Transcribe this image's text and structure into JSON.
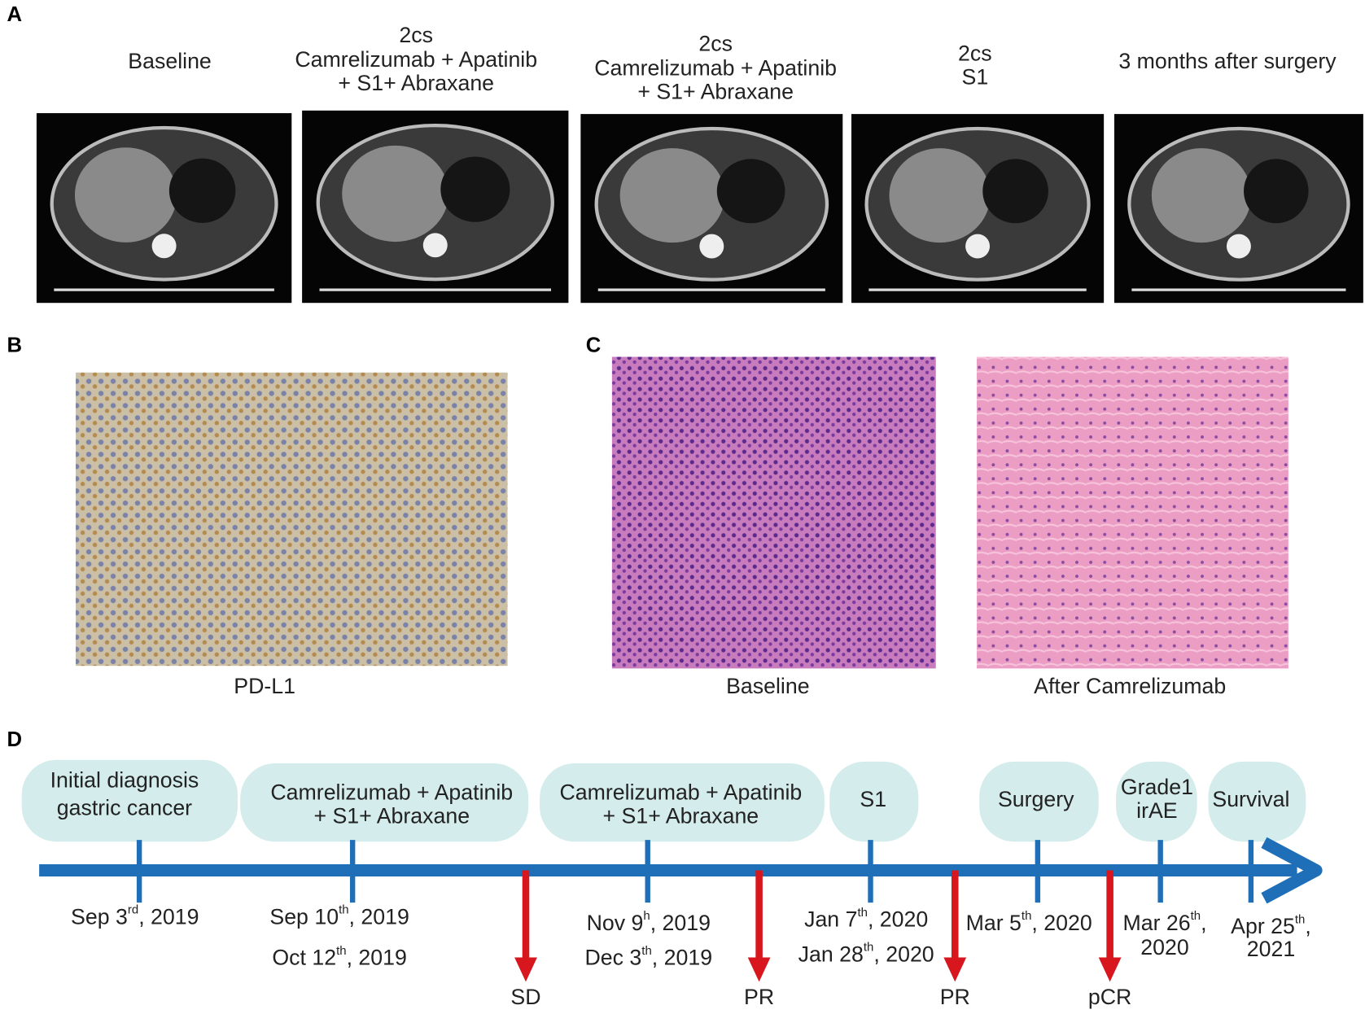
{
  "panels": {
    "a": "A",
    "b": "B",
    "c": "C",
    "d": "D"
  },
  "ct_scans": [
    {
      "label": [
        "Baseline"
      ]
    },
    {
      "label": [
        "2cs",
        "Camrelizumab + Apatinib",
        "+ S1+ Abraxane"
      ]
    },
    {
      "label": [
        "2cs",
        "Camrelizumab + Apatinib",
        "+ S1+ Abraxane"
      ]
    },
    {
      "label": [
        "2cs",
        "S1"
      ]
    },
    {
      "label": [
        "3 months after surgery"
      ]
    }
  ],
  "pdl1_caption": "PD-L1",
  "he_captions": [
    "Baseline",
    "After Camrelizumab"
  ],
  "timeline": {
    "phases": [
      [
        "Initial diagnosis",
        "gastric cancer"
      ],
      [
        "Camrelizumab + Apatinib",
        "+ S1+ Abraxane"
      ],
      [
        "Camrelizumab + Apatinib",
        "+ S1+ Abraxane"
      ],
      [
        "S1"
      ],
      [
        "Surgery"
      ],
      [
        "Grade1",
        "irAE"
      ],
      [
        "Survival"
      ]
    ],
    "dates": [
      [
        {
          "pre": "Sep 3",
          "sup": "rd",
          "post": ", 2019"
        }
      ],
      [
        {
          "pre": "Sep 10",
          "sup": "th",
          "post": ", 2019"
        },
        {
          "pre": "Oct 12",
          "sup": "th",
          "post": ", 2019"
        }
      ],
      [
        {
          "pre": "Nov 9",
          "sup": "h",
          "post": ", 2019"
        },
        {
          "pre": "Dec 3",
          "sup": "th",
          "post": ", 2019"
        }
      ],
      [
        {
          "pre": "Jan 7",
          "sup": "th",
          "post": ", 2020"
        },
        {
          "pre": "Jan 28",
          "sup": "th",
          "post": ", 2020"
        }
      ],
      [
        {
          "pre": "Mar 5",
          "sup": "th",
          "post": ", 2020"
        }
      ],
      [
        {
          "pre": "Mar 26",
          "sup": "th",
          "post": ","
        },
        {
          "pre": "2020"
        }
      ],
      [
        {
          "pre": "Apr 25",
          "sup": "th",
          "post": ","
        },
        {
          "pre": "2021"
        }
      ]
    ],
    "responses": [
      "SD",
      "PR",
      "PR",
      "pCR"
    ]
  }
}
